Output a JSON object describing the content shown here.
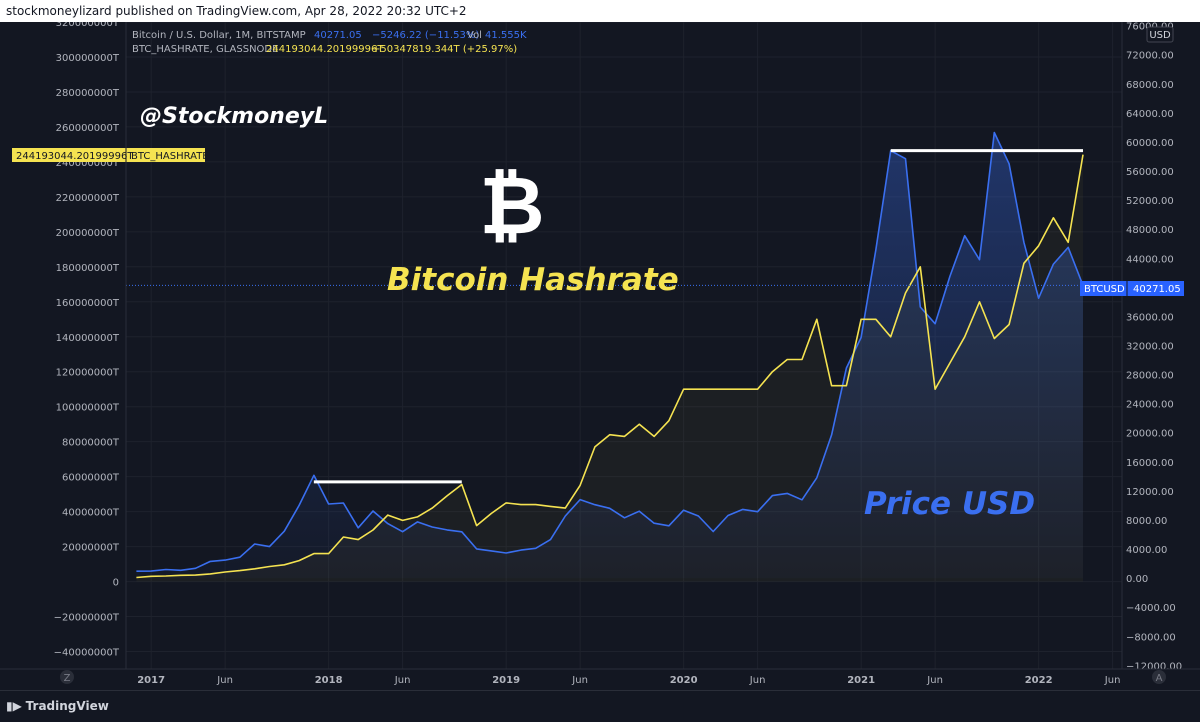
{
  "header": {
    "publisher_line": "stockmoneylizard published on TradingView.com, Apr 28, 2022 20:32 UTC+2"
  },
  "legend": {
    "line1_name": "Bitcoin / U.S. Dollar, 1M, BITSTAMP",
    "line1_price": "40271.05",
    "line1_change": "−5246.22 (−11.53%)",
    "line1_vol_label": "Vol",
    "line1_vol": "41.555K",
    "line2_name": "BTC_HASHRATE, GLASSNODE",
    "line2_value": "244193044.20199996T",
    "line2_change": "+50347819.344T (+25.97%)"
  },
  "annotations": {
    "handle": "@StockmoneyL",
    "logo_glyph": "₿",
    "hashrate_title": "Bitcoin Hashrate",
    "price_title": "Price USD"
  },
  "tags": {
    "hashrate_value": "244193044.20199996T",
    "hashrate_name": "BTC_HASHRATE",
    "btcusd_name": "BTCUSD",
    "btcusd_value": "40271.05",
    "currency": "USD"
  },
  "axis_buttons": {
    "left_corner": "Z",
    "right_corner": "A"
  },
  "footer": {
    "brand": "TradingView"
  },
  "colors": {
    "background": "#131722",
    "price_line": "#3a6ff0",
    "hashrate_line": "#f5e351",
    "hline": "#ffffff",
    "tag_yellow": "#f5e351",
    "tag_blue": "#2962ff"
  },
  "chart_data": {
    "type": "line",
    "title": "",
    "x_ticks": [
      "2017",
      "Jun",
      "2018",
      "Jun",
      "2019",
      "Jun",
      "2020",
      "Jun",
      "2021",
      "Jun",
      "2022",
      "Jun"
    ],
    "left_axis": {
      "label": "",
      "ticks": [
        "320000000T",
        "300000000T",
        "280000000T",
        "260000000T",
        "240000000T",
        "220000000T",
        "200000000T",
        "180000000T",
        "160000000T",
        "140000000T",
        "120000000T",
        "100000000T",
        "80000000T",
        "60000000T",
        "40000000T",
        "20000000T",
        "0",
        "−20000000T",
        "−40000000T"
      ],
      "ylim": [
        -50000000,
        320000000
      ]
    },
    "right_axis": {
      "label": "USD",
      "ticks": [
        "76000.00",
        "72000.00",
        "68000.00",
        "64000.00",
        "60000.00",
        "56000.00",
        "52000.00",
        "48000.00",
        "44000.00",
        "40000.00",
        "36000.00",
        "32000.00",
        "28000.00",
        "24000.00",
        "20000.00",
        "16000.00",
        "12000.00",
        "8000.00",
        "4000.00",
        "0.00",
        "−4000.00",
        "−8000.00",
        "−12000.00"
      ],
      "ylim": [
        -12500,
        76500
      ]
    },
    "x": [
      "2016-12",
      "2017-01",
      "2017-02",
      "2017-03",
      "2017-04",
      "2017-05",
      "2017-06",
      "2017-07",
      "2017-08",
      "2017-09",
      "2017-10",
      "2017-11",
      "2017-12",
      "2018-01",
      "2018-02",
      "2018-03",
      "2018-04",
      "2018-05",
      "2018-06",
      "2018-07",
      "2018-08",
      "2018-09",
      "2018-10",
      "2018-11",
      "2018-12",
      "2019-01",
      "2019-02",
      "2019-03",
      "2019-04",
      "2019-05",
      "2019-06",
      "2019-07",
      "2019-08",
      "2019-09",
      "2019-10",
      "2019-11",
      "2019-12",
      "2020-01",
      "2020-02",
      "2020-03",
      "2020-04",
      "2020-05",
      "2020-06",
      "2020-07",
      "2020-08",
      "2020-09",
      "2020-10",
      "2020-11",
      "2020-12",
      "2021-01",
      "2021-02",
      "2021-03",
      "2021-04",
      "2021-05",
      "2021-06",
      "2021-07",
      "2021-08",
      "2021-09",
      "2021-10",
      "2021-11",
      "2021-12",
      "2022-01",
      "2022-02",
      "2022-03",
      "2022-04"
    ],
    "series": [
      {
        "name": "Bitcoin / U.S. Dollar",
        "axis": "right",
        "values": [
          960,
          970,
          1190,
          1080,
          1350,
          2300,
          2480,
          2880,
          4700,
          4340,
          6460,
          10000,
          14150,
          10200,
          10330,
          6930,
          9240,
          7500,
          6390,
          7730,
          7030,
          6630,
          6370,
          4020,
          3740,
          3460,
          3850,
          4100,
          5300,
          8550,
          10800,
          10100,
          9600,
          8300,
          9200,
          7550,
          7200,
          9350,
          8550,
          6420,
          8620,
          9450,
          9140,
          11350,
          11650,
          10780,
          13800,
          19700,
          28900,
          33100,
          45200,
          58800,
          57700,
          37300,
          35000,
          41500,
          47100,
          43800,
          61300,
          57000,
          46200,
          38500,
          43200,
          45500,
          40271.05
        ]
      },
      {
        "name": "BTC_HASHRATE",
        "axis": "left",
        "values": [
          2300000,
          3000000,
          3200000,
          3600000,
          3700000,
          4400000,
          5500000,
          6300000,
          7300000,
          8600000,
          9600000,
          12000000,
          16000000,
          16000000,
          25500000,
          24000000,
          29500000,
          38000000,
          35000000,
          37000000,
          42000000,
          49000000,
          55500000,
          32000000,
          39000000,
          45000000,
          44000000,
          44000000,
          43000000,
          42000000,
          55000000,
          77000000,
          84000000,
          83000000,
          90000000,
          83000000,
          92000000,
          110000000,
          110000000,
          110000000,
          110000000,
          110000000,
          110000000,
          120000000,
          127000000,
          127000000,
          150000000,
          112000000,
          112000000,
          150000000,
          150000000,
          140000000,
          165000000,
          180000000,
          110000000,
          125000000,
          140000000,
          160000000,
          139000000,
          147000000,
          182000000,
          192000000,
          208000000,
          194000000,
          244193044.20199996
        ]
      }
    ],
    "hlines": [
      {
        "series": "Bitcoin / U.S. Dollar",
        "value": 58800,
        "from": "2021-03",
        "to": "2022-04"
      },
      {
        "series": "BTC_HASHRATE",
        "value": 57000000,
        "from": "2017-12",
        "to": "2018-10"
      }
    ],
    "grid": true,
    "legend_position": "top-left"
  }
}
